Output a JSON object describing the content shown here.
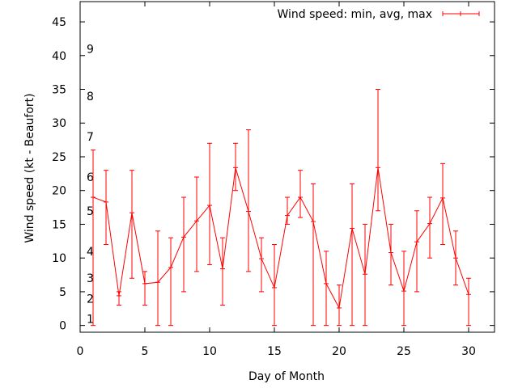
{
  "chart_data": {
    "type": "line",
    "xlabel": "Day of Month",
    "ylabel": "Wind speed (kt - Beaufort)",
    "xlim": [
      0,
      32
    ],
    "ylim": [
      -1,
      48
    ],
    "xticks": [
      0,
      5,
      10,
      15,
      20,
      25,
      30
    ],
    "yticks": [
      0,
      5,
      10,
      15,
      20,
      25,
      30,
      35,
      40,
      45
    ],
    "grid": false,
    "legend_position": "top-right",
    "series": [
      {
        "name": "Wind speed: min, avg, max",
        "color": "#ff0000",
        "x": [
          1,
          2,
          3,
          4,
          5,
          6,
          7,
          8,
          9,
          10,
          11,
          12,
          13,
          14,
          15,
          16,
          17,
          18,
          19,
          20,
          21,
          22,
          23,
          24,
          25,
          26,
          27,
          28,
          29,
          30
        ],
        "avg": [
          19,
          18.3,
          4.4,
          16.7,
          6.2,
          6.4,
          8.6,
          13.1,
          15.5,
          17.8,
          8.4,
          23.4,
          16.9,
          9.9,
          5.6,
          16.3,
          19.0,
          15.4,
          6.2,
          2.6,
          14.4,
          7.6,
          23.4,
          10.8,
          5.1,
          12.4,
          15.1,
          18.9,
          10.0,
          4.6
        ],
        "min": [
          0,
          12,
          3,
          7,
          3,
          0,
          0,
          5,
          8,
          9,
          3,
          20,
          8,
          5,
          0,
          15,
          16,
          0,
          0,
          0,
          0,
          0,
          17,
          6,
          0,
          5,
          10,
          12,
          6,
          0
        ],
        "max": [
          26,
          23,
          5,
          23,
          8,
          14,
          13,
          19,
          22,
          27,
          13,
          27,
          29,
          13,
          12,
          19,
          23,
          21,
          11,
          6,
          21,
          15,
          35,
          15,
          11,
          17,
          19,
          24,
          14,
          7
        ]
      }
    ],
    "beaufort_scale": {
      "labels": [
        "1",
        "2",
        "3",
        "4",
        "5",
        "6",
        "7",
        "8",
        "9"
      ],
      "at_knots": [
        1,
        4,
        7,
        11,
        17,
        22,
        28,
        34,
        41
      ]
    }
  }
}
